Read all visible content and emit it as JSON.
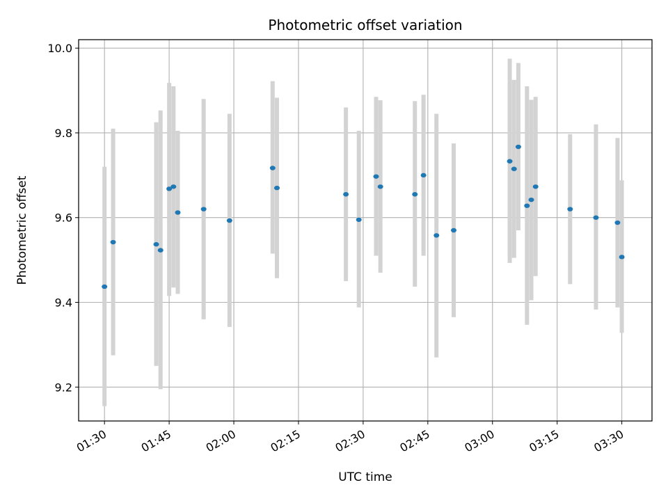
{
  "chart_data": {
    "type": "scatter",
    "title": "Photometric offset variation",
    "xlabel": "UTC time",
    "ylabel": "Photometric offset",
    "x_ticks": [
      "01:30",
      "01:45",
      "02:00",
      "02:15",
      "02:30",
      "02:45",
      "03:00",
      "03:15",
      "03:30"
    ],
    "y_ticks": [
      "9.2",
      "9.4",
      "9.6",
      "9.8",
      "10.0"
    ],
    "xlim": [
      "01:24",
      "03:37"
    ],
    "ylim": [
      9.12,
      10.02
    ],
    "grid": true,
    "colors": {
      "point": "#1f77b4",
      "error_bar": "#d3d3d3",
      "grid": "#b0b0b0"
    },
    "points": [
      {
        "x": "01:30",
        "y": 9.437,
        "y_low": 9.155,
        "y_high": 9.72
      },
      {
        "x": "01:32",
        "y": 9.542,
        "y_low": 9.275,
        "y_high": 9.81
      },
      {
        "x": "01:42",
        "y": 9.537,
        "y_low": 9.25,
        "y_high": 9.825
      },
      {
        "x": "01:43",
        "y": 9.523,
        "y_low": 9.195,
        "y_high": 9.853
      },
      {
        "x": "01:45",
        "y": 9.668,
        "y_low": 9.415,
        "y_high": 9.918
      },
      {
        "x": "01:46",
        "y": 9.673,
        "y_low": 9.435,
        "y_high": 9.91
      },
      {
        "x": "01:47",
        "y": 9.612,
        "y_low": 9.42,
        "y_high": 9.805
      },
      {
        "x": "01:53",
        "y": 9.62,
        "y_low": 9.36,
        "y_high": 9.88
      },
      {
        "x": "01:59",
        "y": 9.593,
        "y_low": 9.342,
        "y_high": 9.845
      },
      {
        "x": "02:09",
        "y": 9.717,
        "y_low": 9.515,
        "y_high": 9.922
      },
      {
        "x": "02:10",
        "y": 9.67,
        "y_low": 9.457,
        "y_high": 9.883
      },
      {
        "x": "02:26",
        "y": 9.655,
        "y_low": 9.45,
        "y_high": 9.86
      },
      {
        "x": "02:29",
        "y": 9.595,
        "y_low": 9.388,
        "y_high": 9.805
      },
      {
        "x": "02:33",
        "y": 9.697,
        "y_low": 9.51,
        "y_high": 9.885
      },
      {
        "x": "02:34",
        "y": 9.673,
        "y_low": 9.47,
        "y_high": 9.877
      },
      {
        "x": "02:42",
        "y": 9.655,
        "y_low": 9.437,
        "y_high": 9.875
      },
      {
        "x": "02:44",
        "y": 9.7,
        "y_low": 9.51,
        "y_high": 9.89
      },
      {
        "x": "02:47",
        "y": 9.558,
        "y_low": 9.27,
        "y_high": 9.845
      },
      {
        "x": "02:51",
        "y": 9.57,
        "y_low": 9.365,
        "y_high": 9.775
      },
      {
        "x": "03:04",
        "y": 9.733,
        "y_low": 9.493,
        "y_high": 9.975
      },
      {
        "x": "03:05",
        "y": 9.715,
        "y_low": 9.505,
        "y_high": 9.925
      },
      {
        "x": "03:06",
        "y": 9.767,
        "y_low": 9.57,
        "y_high": 9.965
      },
      {
        "x": "03:08",
        "y": 9.628,
        "y_low": 9.347,
        "y_high": 9.91
      },
      {
        "x": "03:09",
        "y": 9.642,
        "y_low": 9.405,
        "y_high": 9.878
      },
      {
        "x": "03:10",
        "y": 9.673,
        "y_low": 9.462,
        "y_high": 9.885
      },
      {
        "x": "03:18",
        "y": 9.62,
        "y_low": 9.443,
        "y_high": 9.797
      },
      {
        "x": "03:24",
        "y": 9.6,
        "y_low": 9.383,
        "y_high": 9.82
      },
      {
        "x": "03:29",
        "y": 9.588,
        "y_low": 9.388,
        "y_high": 9.788
      },
      {
        "x": "03:30",
        "y": 9.507,
        "y_low": 9.328,
        "y_high": 9.688
      }
    ]
  }
}
